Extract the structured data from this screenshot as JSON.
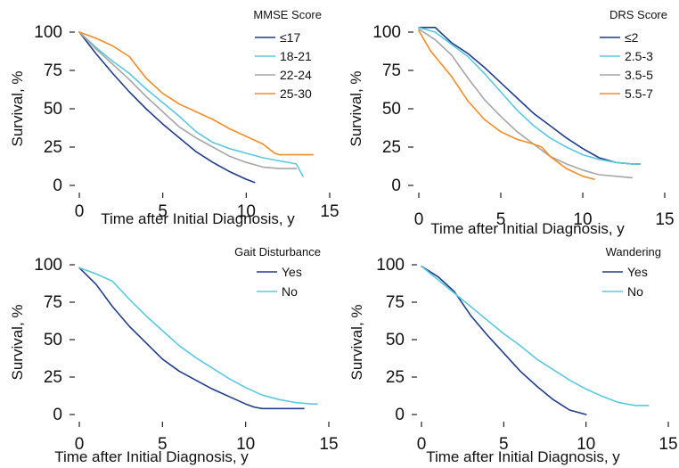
{
  "chart_data": [
    {
      "type": "line",
      "panel": "top-left",
      "xlabel": "Time after Initial Diagnosis, y",
      "ylabel": "Survival, %",
      "xlim": [
        0,
        15
      ],
      "ylim": [
        0,
        100
      ],
      "xticks": [
        "0",
        "5",
        "10",
        "15"
      ],
      "yticks": [
        "0",
        "25",
        "50",
        "75",
        "100"
      ],
      "grid": false,
      "legend_position": "top-right",
      "legend_title": "MMSE Score",
      "series": [
        {
          "name": "≤17",
          "color": "#1f3d8a",
          "x": [
            0,
            1,
            2,
            3,
            4,
            5,
            6,
            7,
            8,
            9,
            10,
            10.5
          ],
          "y": [
            100,
            86,
            73,
            61,
            50,
            40,
            31,
            22,
            15,
            9,
            4,
            2
          ]
        },
        {
          "name": "18-21",
          "color": "#5bc8df",
          "x": [
            0,
            1,
            2,
            3,
            4,
            5,
            6,
            7,
            8,
            9,
            10,
            11,
            12,
            13,
            13.4
          ],
          "y": [
            100,
            90,
            81,
            73,
            63,
            54,
            45,
            35,
            28,
            24,
            21,
            18,
            16,
            14,
            6
          ]
        },
        {
          "name": "22-24",
          "color": "#a6a6a6",
          "x": [
            0,
            1,
            2,
            3,
            4,
            5,
            6,
            7,
            8,
            9,
            10,
            11,
            12,
            13
          ],
          "y": [
            100,
            89,
            79,
            69,
            58,
            48,
            38,
            31,
            25,
            19,
            15,
            12,
            11,
            11
          ]
        },
        {
          "name": "25-30",
          "color": "#f28c28",
          "x": [
            0,
            1,
            2,
            3,
            4,
            5,
            6,
            7,
            8,
            9,
            10,
            11,
            11.7,
            12,
            13,
            14
          ],
          "y": [
            100,
            96,
            91,
            84,
            70,
            60,
            53,
            48,
            43,
            37,
            32,
            27,
            21,
            20,
            20,
            20
          ]
        }
      ]
    },
    {
      "type": "line",
      "panel": "top-right",
      "xlabel": "Time after Initial Diagnosis, y",
      "ylabel": "Survival, %",
      "xlim": [
        0,
        15
      ],
      "ylim": [
        0,
        100
      ],
      "xticks": [
        "0",
        "5",
        "10",
        "15"
      ],
      "yticks": [
        "0",
        "25",
        "50",
        "75",
        "100"
      ],
      "grid": false,
      "legend_position": "top-right",
      "legend_title": "DRS Score",
      "series": [
        {
          "name": "≤2",
          "color": "#1f3d8a",
          "x": [
            0,
            0.3,
            1,
            2,
            3,
            4,
            5,
            6,
            7,
            8,
            9,
            10,
            11,
            12,
            13,
            13.5
          ],
          "y": [
            103,
            103,
            103,
            93,
            86,
            77,
            67,
            57,
            47,
            39,
            31,
            24,
            18,
            15,
            14,
            14
          ]
        },
        {
          "name": "2.5-3",
          "color": "#5bc8df",
          "x": [
            0,
            1,
            2,
            3,
            4,
            5,
            6,
            7,
            8,
            9,
            10,
            11,
            12,
            13,
            13.5
          ],
          "y": [
            103,
            100,
            92,
            84,
            73,
            61,
            49,
            39,
            31,
            25,
            20,
            17,
            15,
            14,
            14
          ]
        },
        {
          "name": "3.5-5",
          "color": "#a6a6a6",
          "x": [
            0,
            1,
            2,
            3,
            4,
            5,
            6,
            7,
            8,
            9,
            10,
            11,
            12,
            13
          ],
          "y": [
            102,
            95,
            85,
            70,
            56,
            45,
            35,
            27,
            19,
            14,
            10,
            7,
            6,
            5
          ]
        },
        {
          "name": "5.5-7",
          "color": "#f28c28",
          "x": [
            0,
            0.7,
            1,
            2,
            3,
            4,
            5,
            6,
            7,
            7.5,
            8,
            9,
            10,
            10.7
          ],
          "y": [
            101,
            88,
            84,
            71,
            55,
            43,
            35,
            30,
            27,
            25,
            19,
            11,
            6,
            4
          ]
        }
      ]
    },
    {
      "type": "line",
      "panel": "bottom-left",
      "xlabel": "Time after Initial Diagnosis, y",
      "ylabel": "Survival, %",
      "xlim": [
        0,
        15
      ],
      "ylim": [
        0,
        100
      ],
      "xticks": [
        "0",
        "5",
        "10",
        "15"
      ],
      "yticks": [
        "0",
        "25",
        "50",
        "75",
        "100"
      ],
      "grid": false,
      "legend_position": "top-right",
      "legend_title": "Gait Disturbance",
      "series": [
        {
          "name": "Yes",
          "color": "#1f3d8a",
          "x": [
            0,
            1,
            2,
            3,
            4,
            5,
            6,
            7,
            8,
            9,
            10,
            10.5,
            11,
            12,
            13.5
          ],
          "y": [
            98,
            87,
            72,
            59,
            48,
            37,
            29,
            23,
            17,
            12,
            7,
            5,
            4,
            4,
            4
          ]
        },
        {
          "name": "No",
          "color": "#5bc8df",
          "x": [
            0,
            1,
            2,
            3,
            4,
            5,
            6,
            7,
            8,
            9,
            10,
            11,
            12,
            13,
            14,
            14.3
          ],
          "y": [
            98,
            94,
            89,
            77,
            66,
            56,
            46,
            38,
            31,
            24,
            18,
            13,
            10,
            8,
            7,
            7
          ]
        }
      ]
    },
    {
      "type": "line",
      "panel": "bottom-right",
      "xlabel": "Time after Initial Diagnosis, y",
      "ylabel": "Survival, %",
      "xlim": [
        0,
        15
      ],
      "ylim": [
        0,
        100
      ],
      "xticks": [
        "0",
        "5",
        "10",
        "15"
      ],
      "yticks": [
        "0",
        "25",
        "50",
        "75",
        "100"
      ],
      "grid": false,
      "legend_position": "top-right",
      "legend_title": "Wandering",
      "series": [
        {
          "name": "Yes",
          "color": "#1f3d8a",
          "x": [
            0,
            1,
            2,
            3,
            4,
            5,
            6,
            7,
            8,
            9,
            10
          ],
          "y": [
            99,
            92,
            82,
            66,
            53,
            41,
            29,
            19,
            10,
            3,
            0
          ]
        },
        {
          "name": "No",
          "color": "#5bc8df",
          "x": [
            0,
            1,
            2,
            3,
            4,
            5,
            6,
            7,
            8,
            9,
            10,
            11,
            12,
            13,
            13.8
          ],
          "y": [
            99,
            90,
            81,
            72,
            63,
            54,
            46,
            37,
            30,
            23,
            17,
            12,
            8,
            6,
            6
          ]
        }
      ]
    }
  ]
}
